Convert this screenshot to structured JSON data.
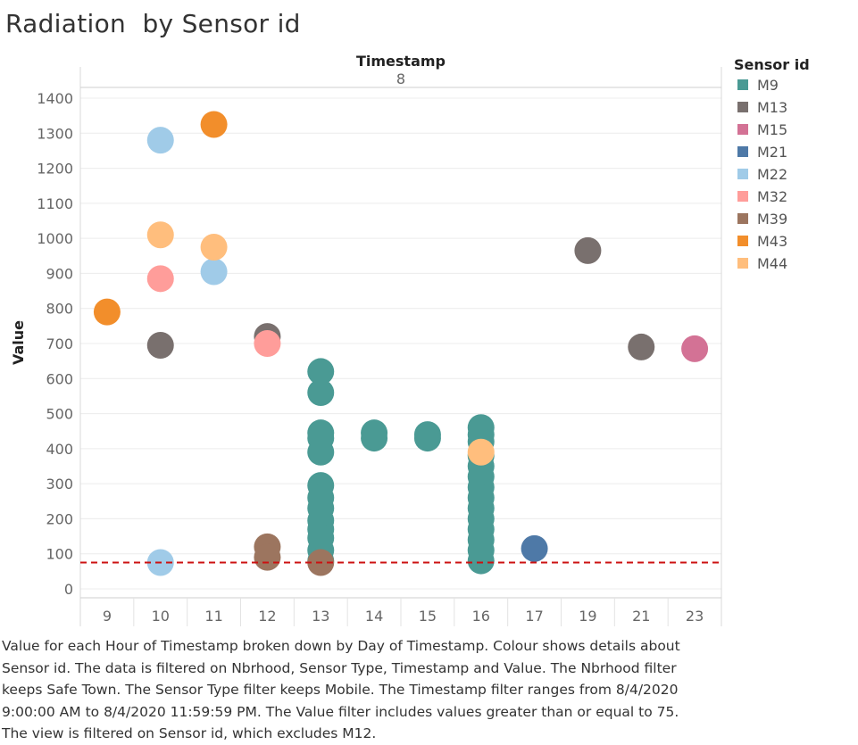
{
  "title": "Radiation  by Sensor id",
  "caption": "Value for each Hour of Timestamp broken down by Day of Timestamp.  Colour shows details about Sensor id. The data is filtered on Nbrhood, Sensor Type, Timestamp and Value. The Nbrhood filter keeps Safe Town. The Sensor Type filter keeps Mobile. The Timestamp filter ranges from 8/4/2020 9:00:00 AM to 8/4/2020 11:59:59 PM. The Value filter includes values greater than or equal to 75. The view is filtered on Sensor id, which excludes M12.",
  "chart_data": {
    "type": "scatter",
    "column_header": "Timestamp",
    "column_value": "8",
    "ylabel": "Value",
    "xlabel": "",
    "x_categories": [
      "9",
      "10",
      "11",
      "12",
      "13",
      "14",
      "15",
      "16",
      "17",
      "19",
      "21",
      "23"
    ],
    "y_ticks": [
      0,
      100,
      200,
      300,
      400,
      500,
      600,
      700,
      800,
      900,
      1000,
      1100,
      1200,
      1300,
      1400
    ],
    "ylim": [
      0,
      1400
    ],
    "reference_line": {
      "value": 75,
      "style": "dashed",
      "color": "#cc1111"
    },
    "legend_title": "Sensor id",
    "legend_position": "right",
    "grid": true,
    "series": [
      {
        "name": "M9",
        "color": "#4a9a94",
        "points": [
          {
            "x": "13",
            "y": 620
          },
          {
            "x": "13",
            "y": 560
          },
          {
            "x": "13",
            "y": 445
          },
          {
            "x": "13",
            "y": 430
          },
          {
            "x": "13",
            "y": 390
          },
          {
            "x": "13",
            "y": 295
          },
          {
            "x": "13",
            "y": 260
          },
          {
            "x": "13",
            "y": 230
          },
          {
            "x": "13",
            "y": 195
          },
          {
            "x": "13",
            "y": 170
          },
          {
            "x": "13",
            "y": 145
          },
          {
            "x": "13",
            "y": 110
          },
          {
            "x": "13",
            "y": 80
          },
          {
            "x": "14",
            "y": 445
          },
          {
            "x": "14",
            "y": 430
          },
          {
            "x": "15",
            "y": 440
          },
          {
            "x": "15",
            "y": 430
          },
          {
            "x": "16",
            "y": 460
          },
          {
            "x": "16",
            "y": 440
          },
          {
            "x": "16",
            "y": 420
          },
          {
            "x": "16",
            "y": 380
          },
          {
            "x": "16",
            "y": 350
          },
          {
            "x": "16",
            "y": 320
          },
          {
            "x": "16",
            "y": 290
          },
          {
            "x": "16",
            "y": 260
          },
          {
            "x": "16",
            "y": 230
          },
          {
            "x": "16",
            "y": 200
          },
          {
            "x": "16",
            "y": 170
          },
          {
            "x": "16",
            "y": 140
          },
          {
            "x": "16",
            "y": 110
          },
          {
            "x": "16",
            "y": 80
          }
        ]
      },
      {
        "name": "M13",
        "color": "#79706e",
        "points": [
          {
            "x": "10",
            "y": 695
          },
          {
            "x": "12",
            "y": 720
          },
          {
            "x": "19",
            "y": 965
          },
          {
            "x": "21",
            "y": 690
          }
        ]
      },
      {
        "name": "M15",
        "color": "#d37295",
        "points": [
          {
            "x": "23",
            "y": 685
          }
        ]
      },
      {
        "name": "M21",
        "color": "#4e79a7",
        "points": [
          {
            "x": "17",
            "y": 115
          }
        ]
      },
      {
        "name": "M22",
        "color": "#a0cbe8",
        "points": [
          {
            "x": "10",
            "y": 1280
          },
          {
            "x": "11",
            "y": 905
          },
          {
            "x": "10",
            "y": 75
          }
        ]
      },
      {
        "name": "M32",
        "color": "#ff9d9a",
        "points": [
          {
            "x": "10",
            "y": 885
          },
          {
            "x": "12",
            "y": 700
          }
        ]
      },
      {
        "name": "M39",
        "color": "#9c755f",
        "points": [
          {
            "x": "12",
            "y": 120
          },
          {
            "x": "12",
            "y": 90
          },
          {
            "x": "13",
            "y": 75
          }
        ]
      },
      {
        "name": "M43",
        "color": "#f28e2b",
        "points": [
          {
            "x": "9",
            "y": 790
          },
          {
            "x": "11",
            "y": 1325
          }
        ]
      },
      {
        "name": "M44",
        "color": "#ffbe7d",
        "points": [
          {
            "x": "10",
            "y": 1010
          },
          {
            "x": "11",
            "y": 975
          },
          {
            "x": "16",
            "y": 390
          }
        ]
      }
    ]
  }
}
